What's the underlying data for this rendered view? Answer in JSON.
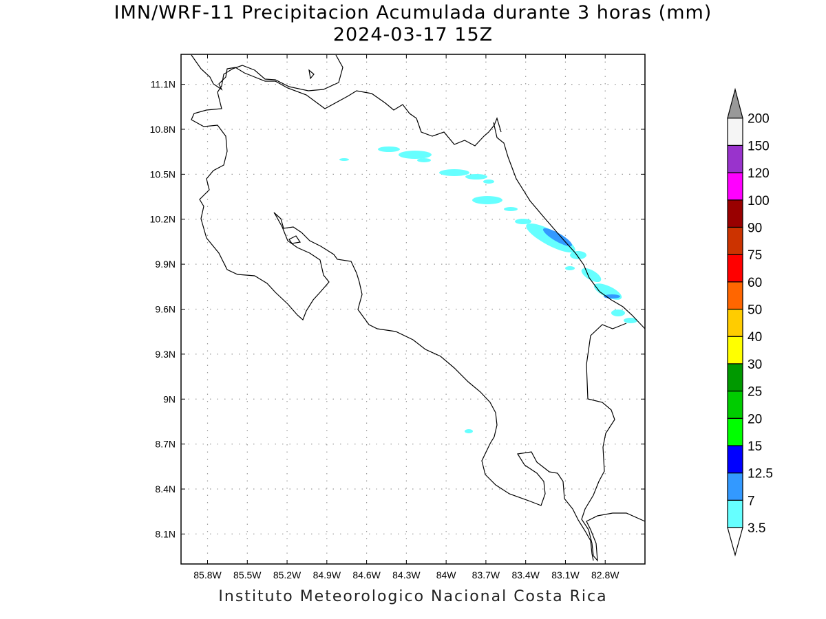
{
  "title": {
    "line1": "IMN/WRF-11 Precipitacion Acumulada durante 3 horas (mm)",
    "line2": "2024-03-17 15Z"
  },
  "credit": "Instituto Meteorologico Nacional Costa Rica",
  "map": {
    "lon_range": [
      -86.0,
      -82.5
    ],
    "lat_range": [
      7.9,
      11.3
    ],
    "lon_ticks": [
      {
        "value": -85.8,
        "label": "85.8W"
      },
      {
        "value": -85.5,
        "label": "85.5W"
      },
      {
        "value": -85.2,
        "label": "85.2W"
      },
      {
        "value": -84.9,
        "label": "84.9W"
      },
      {
        "value": -84.6,
        "label": "84.6W"
      },
      {
        "value": -84.3,
        "label": "84.3W"
      },
      {
        "value": -84.0,
        "label": "84W"
      },
      {
        "value": -83.7,
        "label": "83.7W"
      },
      {
        "value": -83.4,
        "label": "83.4W"
      },
      {
        "value": -83.1,
        "label": "83.1W"
      },
      {
        "value": -82.8,
        "label": "82.8W"
      }
    ],
    "lat_ticks": [
      {
        "value": 11.1,
        "label": "11.1N"
      },
      {
        "value": 10.8,
        "label": "10.8N"
      },
      {
        "value": 10.5,
        "label": "10.5N"
      },
      {
        "value": 10.2,
        "label": "10.2N"
      },
      {
        "value": 9.9,
        "label": "9.9N"
      },
      {
        "value": 9.6,
        "label": "9.6N"
      },
      {
        "value": 9.3,
        "label": "9.3N"
      },
      {
        "value": 9.0,
        "label": "9N"
      },
      {
        "value": 8.7,
        "label": "8.7N"
      },
      {
        "value": 8.4,
        "label": "8.4N"
      },
      {
        "value": 8.1,
        "label": "8.1N"
      }
    ],
    "grid": "dotted"
  },
  "legend": {
    "bins": [
      {
        "label": "3.5",
        "color": "#66ffff"
      },
      {
        "label": "7",
        "color": "#3399ff"
      },
      {
        "label": "12.5",
        "color": "#0000ff"
      },
      {
        "label": "15",
        "color": "#00ff00"
      },
      {
        "label": "20",
        "color": "#00cc00"
      },
      {
        "label": "25",
        "color": "#009900"
      },
      {
        "label": "30",
        "color": "#ffff00"
      },
      {
        "label": "40",
        "color": "#ffcc00"
      },
      {
        "label": "50",
        "color": "#ff6600"
      },
      {
        "label": "60",
        "color": "#ff0000"
      },
      {
        "label": "75",
        "color": "#cc3300"
      },
      {
        "label": "90",
        "color": "#990000"
      },
      {
        "label": "100",
        "color": "#ff00ff"
      },
      {
        "label": "120",
        "color": "#9933cc"
      },
      {
        "label": "150",
        "color": "#f5f5f5"
      },
      {
        "label": "200",
        "color": "#999999"
      }
    ],
    "under_color": "#ffffff"
  }
}
